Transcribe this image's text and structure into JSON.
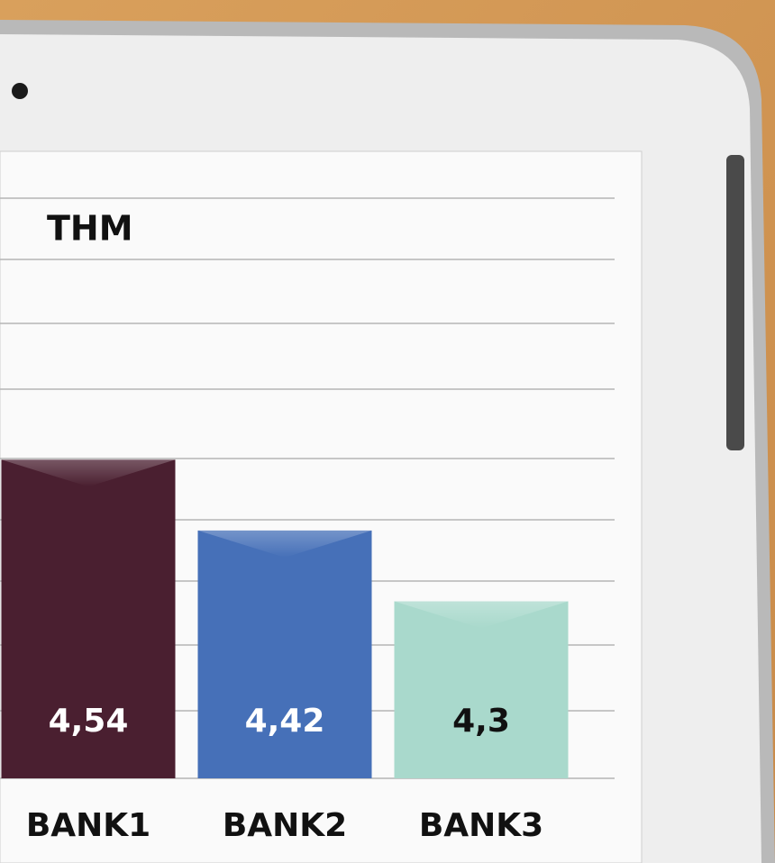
{
  "chart_data": {
    "type": "bar",
    "title": "THM",
    "categories": [
      "BANK1",
      "BANK2",
      "BANK3"
    ],
    "values": [
      4.54,
      4.42,
      4.3
    ],
    "value_labels": [
      "4,54",
      "4,42",
      "4,3"
    ],
    "colors": [
      "#4a1f30",
      "#4670b8",
      "#a9d9cc"
    ],
    "label_colors": [
      "#ffffff",
      "#ffffff",
      "#111111"
    ],
    "ylim": [
      4,
      5
    ]
  }
}
